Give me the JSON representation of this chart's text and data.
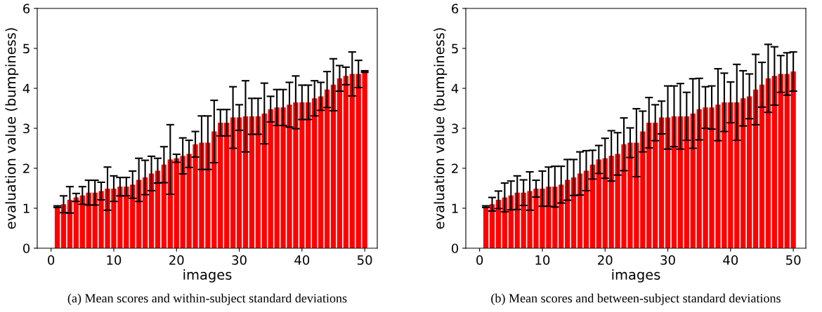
{
  "chart_data": [
    {
      "type": "bar",
      "xlabel": "images",
      "ylabel": "evaluation value (bumpiness)",
      "color": "#ff0000",
      "grid": false,
      "x": [
        1,
        2,
        3,
        4,
        5,
        6,
        7,
        8,
        9,
        10,
        11,
        12,
        13,
        14,
        15,
        16,
        17,
        18,
        19,
        20,
        21,
        22,
        23,
        24,
        25,
        26,
        27,
        28,
        29,
        30,
        31,
        32,
        33,
        34,
        35,
        36,
        37,
        38,
        39,
        40,
        41,
        42,
        43,
        44,
        45,
        46,
        47,
        48,
        49,
        50
      ],
      "values": [
        1.04,
        1.1,
        1.21,
        1.27,
        1.32,
        1.39,
        1.39,
        1.43,
        1.49,
        1.49,
        1.54,
        1.54,
        1.59,
        1.71,
        1.77,
        1.87,
        1.94,
        2.09,
        2.22,
        2.25,
        2.31,
        2.36,
        2.6,
        2.64,
        2.64,
        2.92,
        3.14,
        3.14,
        3.27,
        3.27,
        3.3,
        3.3,
        3.3,
        3.37,
        3.48,
        3.52,
        3.52,
        3.59,
        3.65,
        3.65,
        3.65,
        3.75,
        3.8,
        3.97,
        4.09,
        4.25,
        4.31,
        4.36,
        4.36,
        4.42
      ],
      "errors": [
        0.02,
        0.21,
        0.33,
        0.1,
        0.22,
        0.31,
        0.31,
        0.22,
        0.54,
        0.32,
        0.23,
        0.23,
        0.34,
        0.54,
        0.43,
        0.43,
        0.31,
        0.45,
        0.87,
        0.1,
        0.45,
        0.34,
        0.32,
        0.67,
        0.67,
        0.78,
        0.33,
        0.33,
        0.77,
        0.32,
        0.89,
        0.45,
        0.45,
        0.76,
        0.32,
        0.45,
        0.45,
        0.56,
        0.66,
        0.43,
        0.43,
        0.44,
        0.35,
        0.45,
        0.65,
        0.32,
        0.22,
        0.55,
        0.34,
        0.02
      ],
      "xlim": [
        -2.2,
        52
      ],
      "ylim": [
        0,
        6
      ],
      "xticks": [
        0,
        10,
        20,
        30,
        40,
        50
      ],
      "yticks": [
        0,
        1,
        2,
        3,
        4,
        5,
        6
      ],
      "annotations": [
        "(a) Mean scores and within-subject standard deviations"
      ]
    },
    {
      "type": "bar",
      "xlabel": "images",
      "ylabel": "evaluation value (bumpiness)",
      "color": "#ff0000",
      "grid": false,
      "x": [
        1,
        2,
        3,
        4,
        5,
        6,
        7,
        8,
        9,
        10,
        11,
        12,
        13,
        14,
        15,
        16,
        17,
        18,
        19,
        20,
        21,
        22,
        23,
        24,
        25,
        26,
        27,
        28,
        29,
        30,
        31,
        32,
        33,
        34,
        35,
        36,
        37,
        38,
        39,
        40,
        41,
        42,
        43,
        44,
        45,
        46,
        47,
        48,
        49,
        50
      ],
      "values": [
        1.04,
        1.1,
        1.21,
        1.27,
        1.32,
        1.39,
        1.39,
        1.43,
        1.49,
        1.49,
        1.54,
        1.54,
        1.59,
        1.71,
        1.77,
        1.87,
        1.94,
        2.09,
        2.22,
        2.25,
        2.31,
        2.36,
        2.6,
        2.64,
        2.64,
        2.92,
        3.14,
        3.14,
        3.27,
        3.27,
        3.3,
        3.3,
        3.3,
        3.37,
        3.48,
        3.52,
        3.52,
        3.59,
        3.65,
        3.65,
        3.65,
        3.75,
        3.8,
        3.97,
        4.09,
        4.25,
        4.31,
        4.36,
        4.36,
        4.42
      ],
      "errors": [
        0.02,
        0.17,
        0.22,
        0.36,
        0.36,
        0.42,
        0.32,
        0.48,
        0.21,
        0.44,
        0.49,
        0.51,
        0.46,
        0.51,
        0.45,
        0.54,
        0.5,
        0.36,
        0.35,
        0.5,
        0.63,
        0.53,
        0.66,
        0.37,
        0.85,
        0.51,
        0.63,
        0.45,
        0.41,
        0.79,
        0.76,
        0.82,
        0.6,
        0.87,
        0.77,
        0.52,
        0.54,
        0.9,
        0.73,
        0.51,
        0.95,
        0.69,
        0.56,
        0.88,
        0.56,
        0.85,
        0.73,
        0.46,
        0.53,
        0.49
      ],
      "xlim": [
        -2.2,
        52
      ],
      "ylim": [
        0,
        6
      ],
      "xticks": [
        0,
        10,
        20,
        30,
        40,
        50
      ],
      "yticks": [
        0,
        1,
        2,
        3,
        4,
        5,
        6
      ],
      "annotations": [
        "(b) Mean scores and between-subject standard deviations"
      ]
    }
  ]
}
